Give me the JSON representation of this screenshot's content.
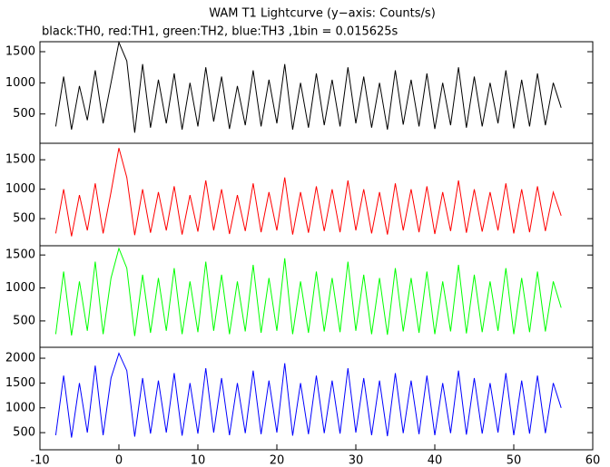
{
  "chart_data": [
    {
      "type": "line",
      "title": "WAM T1 Lightcurve (y−axis: Counts/s)",
      "subtitle": "black:TH0, red:TH1, green:TH2, blue:TH3 ,1bin = 0.015625s",
      "x": [
        -8,
        -7,
        -6,
        -5,
        -4,
        -3,
        -2,
        -1,
        0,
        1,
        2,
        3,
        4,
        5,
        6,
        7,
        8,
        9,
        10,
        11,
        12,
        13,
        14,
        15,
        16,
        17,
        18,
        19,
        20,
        21,
        22,
        23,
        24,
        25,
        26,
        27,
        28,
        29,
        30,
        31,
        32,
        33,
        34,
        35,
        36,
        37,
        38,
        39,
        40,
        41,
        42,
        43,
        44,
        45,
        46,
        47,
        48,
        49,
        50,
        51,
        52,
        53,
        54,
        55,
        56
      ],
      "series": [
        {
          "color": "#000000",
          "values": [
            300,
            1100,
            250,
            950,
            400,
            1200,
            350,
            1000,
            1650,
            1350,
            200,
            1300,
            280,
            1050,
            350,
            1150,
            250,
            1000,
            300,
            1250,
            380,
            1100,
            260,
            950,
            320,
            1200,
            300,
            1050,
            350,
            1300,
            250,
            1000,
            280,
            1150,
            320,
            1050,
            300,
            1250,
            350,
            1100,
            280,
            1000,
            250,
            1200,
            330,
            1050,
            300,
            1150,
            260,
            1000,
            320,
            1250,
            280,
            1100,
            300,
            1000,
            350,
            1200,
            270,
            1050,
            300,
            1150,
            320,
            1000,
            600
          ]
        }
      ],
      "xlim": [
        -10,
        60
      ],
      "ylim": [
        30,
        1660
      ],
      "yticks": [
        500,
        1000,
        1500
      ]
    },
    {
      "type": "line",
      "x": [
        -8,
        -7,
        -6,
        -5,
        -4,
        -3,
        -2,
        -1,
        0,
        1,
        2,
        3,
        4,
        5,
        6,
        7,
        8,
        9,
        10,
        11,
        12,
        13,
        14,
        15,
        16,
        17,
        18,
        19,
        20,
        21,
        22,
        23,
        24,
        25,
        26,
        27,
        28,
        29,
        30,
        31,
        32,
        33,
        34,
        35,
        36,
        37,
        38,
        39,
        40,
        41,
        42,
        43,
        44,
        45,
        46,
        47,
        48,
        49,
        50,
        51,
        52,
        53,
        54,
        55,
        56
      ],
      "series": [
        {
          "color": "#ff0000",
          "values": [
            250,
            1000,
            200,
            900,
            300,
            1100,
            250,
            950,
            1700,
            1200,
            220,
            1000,
            260,
            950,
            300,
            1050,
            230,
            900,
            280,
            1150,
            300,
            1000,
            240,
            900,
            290,
            1100,
            270,
            950,
            300,
            1200,
            230,
            950,
            260,
            1050,
            290,
            1000,
            270,
            1150,
            300,
            1000,
            250,
            950,
            230,
            1100,
            300,
            1000,
            270,
            1050,
            240,
            950,
            290,
            1150,
            260,
            1000,
            280,
            950,
            300,
            1100,
            250,
            1000,
            270,
            1050,
            290,
            950,
            550
          ]
        }
      ],
      "xlim": [
        -10,
        60
      ],
      "ylim": [
        40,
        1780
      ],
      "yticks": [
        500,
        1000,
        1500
      ]
    },
    {
      "type": "line",
      "x": [
        -8,
        -7,
        -6,
        -5,
        -4,
        -3,
        -2,
        -1,
        0,
        1,
        2,
        3,
        4,
        5,
        6,
        7,
        8,
        9,
        10,
        11,
        12,
        13,
        14,
        15,
        16,
        17,
        18,
        19,
        20,
        21,
        22,
        23,
        24,
        25,
        26,
        27,
        28,
        29,
        30,
        31,
        32,
        33,
        34,
        35,
        36,
        37,
        38,
        39,
        40,
        41,
        42,
        43,
        44,
        45,
        46,
        47,
        48,
        49,
        50,
        51,
        52,
        53,
        54,
        55,
        56
      ],
      "series": [
        {
          "color": "#00ff00",
          "values": [
            300,
            1250,
            280,
            1100,
            350,
            1400,
            300,
            1150,
            1600,
            1300,
            270,
            1200,
            320,
            1150,
            350,
            1300,
            300,
            1100,
            330,
            1400,
            350,
            1200,
            300,
            1100,
            340,
            1350,
            320,
            1150,
            350,
            1450,
            300,
            1100,
            320,
            1250,
            340,
            1150,
            330,
            1400,
            350,
            1200,
            300,
            1150,
            290,
            1300,
            340,
            1150,
            320,
            1250,
            300,
            1100,
            340,
            1350,
            310,
            1200,
            330,
            1100,
            350,
            1300,
            300,
            1150,
            330,
            1250,
            340,
            1100,
            700
          ]
        }
      ],
      "xlim": [
        -10,
        60
      ],
      "ylim": [
        100,
        1640
      ],
      "yticks": [
        500,
        1000,
        1500
      ]
    },
    {
      "type": "line",
      "x": [
        -8,
        -7,
        -6,
        -5,
        -4,
        -3,
        -2,
        -1,
        0,
        1,
        2,
        3,
        4,
        5,
        6,
        7,
        8,
        9,
        10,
        11,
        12,
        13,
        14,
        15,
        16,
        17,
        18,
        19,
        20,
        21,
        22,
        23,
        24,
        25,
        26,
        27,
        28,
        29,
        30,
        31,
        32,
        33,
        34,
        35,
        36,
        37,
        38,
        39,
        40,
        41,
        42,
        43,
        44,
        45,
        46,
        47,
        48,
        49,
        50,
        51,
        52,
        53,
        54,
        55,
        56
      ],
      "series": [
        {
          "color": "#0000ff",
          "values": [
            450,
            1650,
            400,
            1500,
            500,
            1850,
            450,
            1600,
            2100,
            1750,
            420,
            1600,
            480,
            1550,
            500,
            1700,
            440,
            1500,
            480,
            1800,
            500,
            1600,
            450,
            1500,
            490,
            1750,
            470,
            1550,
            500,
            1900,
            440,
            1500,
            470,
            1650,
            490,
            1550,
            480,
            1800,
            500,
            1600,
            450,
            1550,
            430,
            1700,
            490,
            1550,
            470,
            1650,
            450,
            1500,
            490,
            1750,
            460,
            1600,
            480,
            1500,
            500,
            1700,
            450,
            1550,
            480,
            1650,
            490,
            1500,
            1000
          ]
        }
      ],
      "xlim": [
        -10,
        60
      ],
      "ylim": [
        155,
        2220
      ],
      "yticks": [
        500,
        1000,
        1500,
        2000
      ],
      "xticks": [
        -10,
        0,
        10,
        20,
        30,
        40,
        50,
        60
      ]
    }
  ]
}
